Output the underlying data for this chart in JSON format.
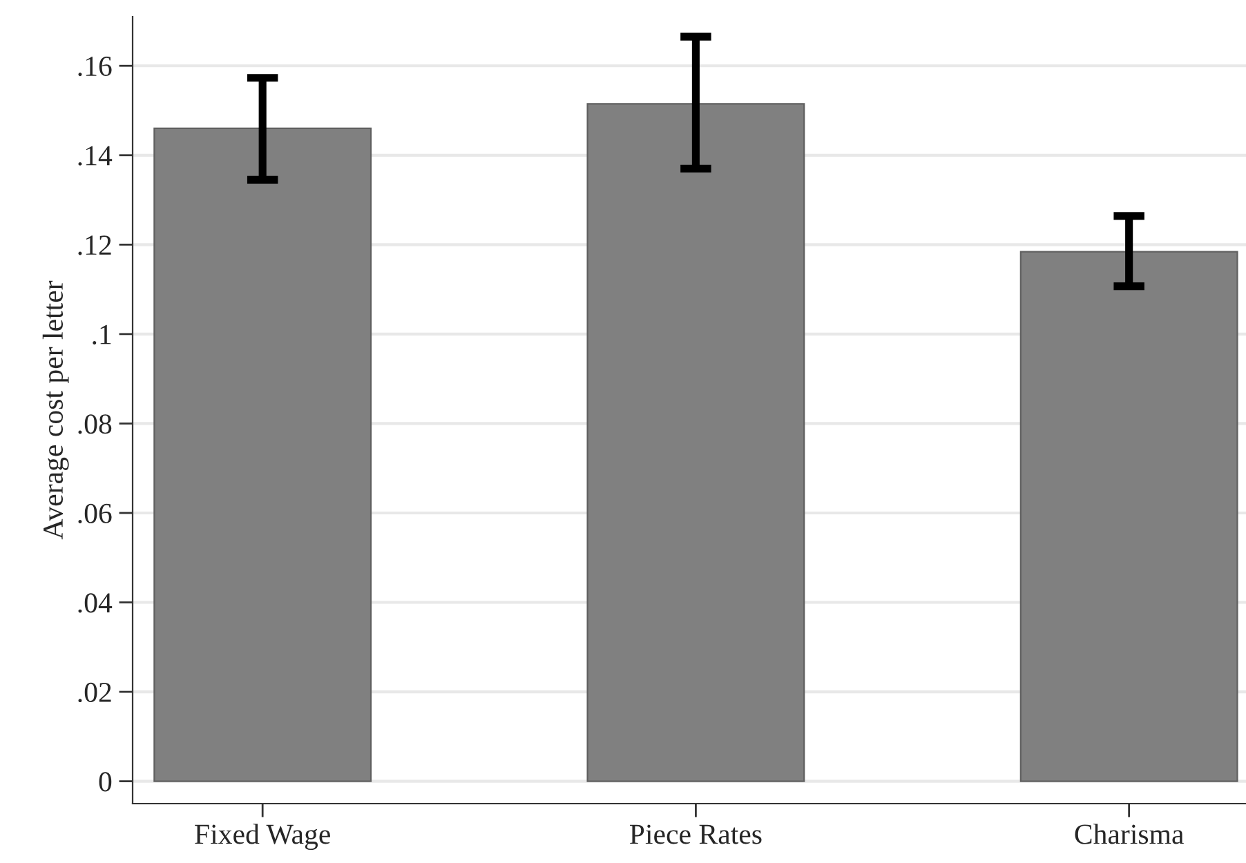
{
  "chart_data": {
    "type": "bar",
    "ylabel": "Average cost per letter",
    "categories": [
      "Fixed Wage",
      "Piece Rates",
      "Charisma"
    ],
    "series": [
      {
        "color": "#808080",
        "values": [
          0.146,
          0.1515,
          0.1184
        ],
        "errors": [
          [
            0.1345,
            0.1573
          ],
          [
            0.137,
            0.1665
          ],
          [
            0.1107,
            0.1264
          ]
        ]
      }
    ],
    "ylim": [
      -0.005,
      0.171
    ],
    "yticks": [
      {
        "value": 0,
        "label": "0"
      },
      {
        "value": 0.02,
        "label": ".02"
      },
      {
        "value": 0.04,
        "label": ".04"
      },
      {
        "value": 0.06,
        "label": ".06"
      },
      {
        "value": 0.08,
        "label": ".08"
      },
      {
        "value": 0.1,
        "label": ".1"
      },
      {
        "value": 0.12,
        "label": ".12"
      },
      {
        "value": 0.14,
        "label": ".14"
      },
      {
        "value": 0.16,
        "label": ".16"
      }
    ],
    "grid": "y",
    "legend": false
  }
}
